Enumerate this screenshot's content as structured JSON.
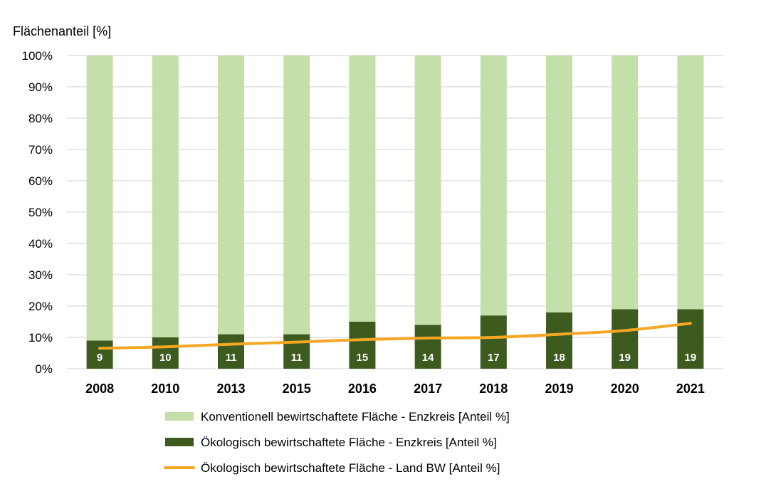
{
  "chart_data": {
    "type": "bar",
    "stacked": true,
    "ylabel": "Flächenanteil [%]",
    "ylim": [
      0,
      100
    ],
    "y_ticks": [
      "0%",
      "10%",
      "20%",
      "30%",
      "40%",
      "50%",
      "60%",
      "70%",
      "80%",
      "90%",
      "100%"
    ],
    "grid": true,
    "legend_position": "bottom",
    "categories": [
      "2008",
      "2010",
      "2013",
      "2015",
      "2016",
      "2017",
      "2018",
      "2019",
      "2020",
      "2021"
    ],
    "series": [
      {
        "name": "Ökologisch bewirtschaftete Fläche - Enzkreis [Anteil %]",
        "kind": "bar",
        "color": "#3d5a1f",
        "values": [
          9,
          10,
          11,
          11,
          15,
          14,
          17,
          18,
          19,
          19
        ],
        "labels": [
          "9",
          "10",
          "11",
          "11",
          "15",
          "14",
          "17",
          "18",
          "19",
          "19"
        ]
      },
      {
        "name": "Konventionell bewirtschaftete Fläche - Enzkreis [Anteil %]",
        "kind": "bar",
        "color": "#c4dfaa",
        "values": [
          91,
          90,
          89,
          89,
          85,
          86,
          83,
          82,
          81,
          81
        ]
      },
      {
        "name": "Ökologisch bewirtschaftete Fläche - Land BW [Anteil %]",
        "kind": "line",
        "color": "#f5a623",
        "values": [
          6.5,
          7,
          7.8,
          8.5,
          9.3,
          9.8,
          10,
          11,
          12.2,
          14.5
        ]
      }
    ],
    "legend_order": [
      1,
      0,
      2
    ]
  }
}
